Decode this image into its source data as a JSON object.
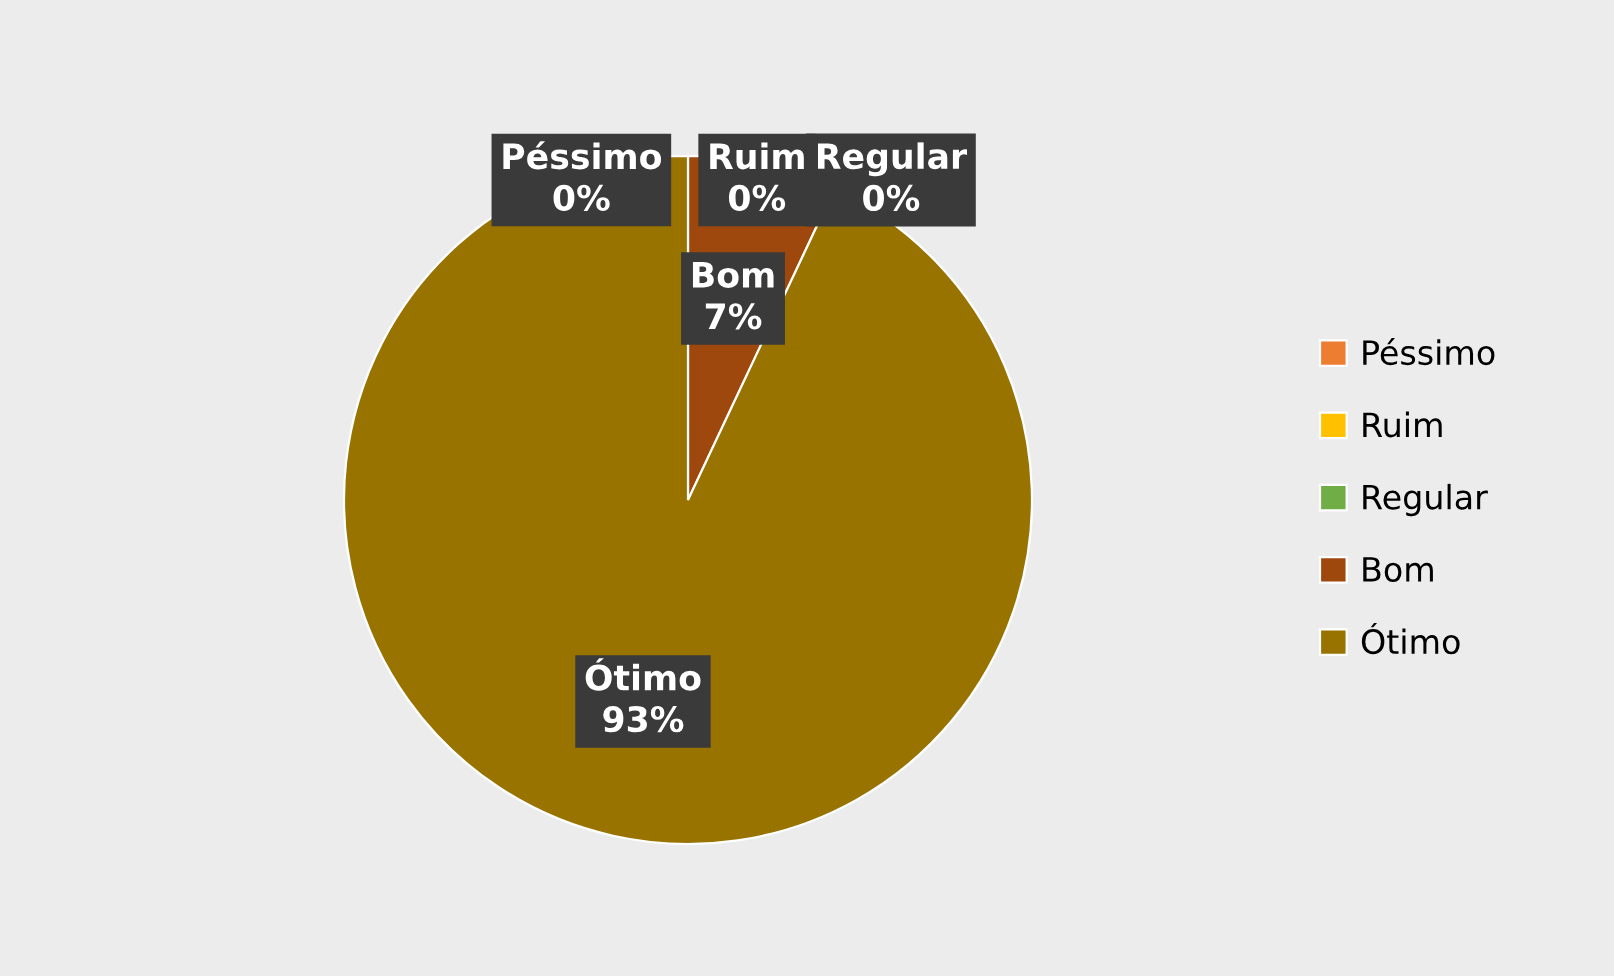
{
  "chart_data": {
    "type": "pie",
    "categories": [
      "Péssimo",
      "Ruim",
      "Regular",
      "Bom",
      "Ótimo"
    ],
    "values": [
      0,
      0,
      0,
      7,
      93
    ],
    "value_labels": [
      "0%",
      "0%",
      "0%",
      "7%",
      "93%"
    ],
    "colors": [
      "#ed7d31",
      "#ffc000",
      "#70ad47",
      "#9e480e",
      "#997300"
    ],
    "legend": "right"
  }
}
